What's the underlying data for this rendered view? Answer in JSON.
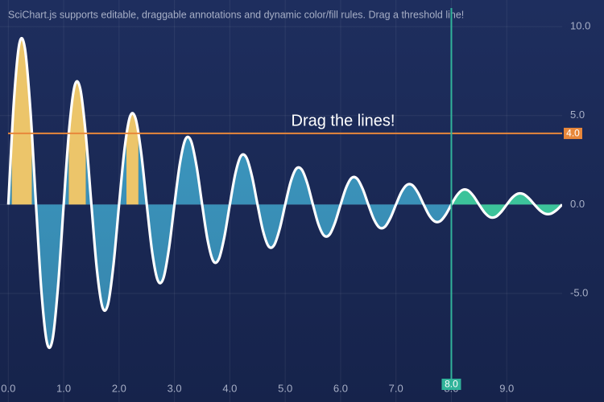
{
  "chart_data": {
    "type": "line",
    "title": "SciChart.js supports editable, draggable annotations and dynamic color/fill rules. Drag a threshold line!",
    "x": [
      0,
      0.1,
      0.2,
      0.3,
      0.4,
      0.5,
      0.6,
      0.7,
      0.8,
      0.9,
      1,
      1.1,
      1.2,
      1.3,
      1.4,
      1.5,
      1.6,
      1.7,
      1.8,
      1.9,
      2,
      2.1,
      2.2,
      2.3,
      2.4,
      2.5,
      2.6,
      2.7,
      2.8,
      2.9,
      3,
      3.1,
      3.2,
      3.3,
      3.4,
      3.5,
      3.6,
      3.7,
      3.8,
      3.9,
      4,
      4.1,
      4.2,
      4.3,
      4.4,
      4.5,
      4.6,
      4.7,
      4.8,
      4.9,
      5,
      5.1,
      5.2,
      5.3,
      5.4,
      5.5,
      5.6,
      5.7,
      5.8,
      5.9,
      6,
      6.1,
      6.2,
      6.3,
      6.4,
      6.5,
      6.6,
      6.7,
      6.8,
      6.9,
      7,
      7.1,
      7.2,
      7.3,
      7.4,
      7.5,
      7.6,
      7.7,
      7.8,
      7.9,
      8,
      8.1,
      8.2,
      8.3,
      8.4,
      8.5,
      8.6,
      8.7,
      8.8,
      8.9,
      9,
      9.1,
      9.2,
      9.3,
      9.4,
      9.5,
      9.6,
      9.7,
      9.8,
      9.9,
      10
    ],
    "values": [
      0,
      5.76,
      9.05,
      8.78,
      5.27,
      0,
      -4.96,
      -7.79,
      -7.56,
      -4.53,
      0,
      4.27,
      6.7,
      6.5,
      3.9,
      0,
      -3.67,
      -5.77,
      -5.6,
      -3.36,
      0,
      3.16,
      4.97,
      4.82,
      2.89,
      0,
      -2.72,
      -4.27,
      -4.15,
      -2.49,
      0,
      2.34,
      3.68,
      3.57,
      2.14,
      0,
      -2.02,
      -3.17,
      -3.07,
      -1.84,
      0,
      1.74,
      2.73,
      2.64,
      1.59,
      0,
      -1.49,
      -2.35,
      -2.28,
      -1.37,
      0,
      1.29,
      2.02,
      1.96,
      1.18,
      0,
      -1.11,
      -1.74,
      -1.69,
      -1.01,
      0,
      0.95,
      1.5,
      1.45,
      0.87,
      0,
      -0.82,
      -1.29,
      -1.25,
      -0.75,
      0,
      0.71,
      1.11,
      1.08,
      0.65,
      0,
      -0.61,
      -0.95,
      -0.93,
      -0.56,
      0,
      0.52,
      0.82,
      0.8,
      0.48,
      0,
      -0.45,
      -0.71,
      -0.69,
      -0.41,
      0,
      0.39,
      0.61,
      0.59,
      0.35,
      0,
      -0.33,
      -0.52,
      -0.51,
      -0.31,
      0
    ],
    "color": "#ffffff",
    "fill_colors": {
      "default": "#3e9fc6",
      "above_threshold": "#ecc56a",
      "right_of_threshold": "#3cc39a"
    },
    "xlim": [
      -0.15,
      10
    ],
    "ylim": [
      -11.1,
      11.5
    ],
    "xticks": [
      {
        "value": 0,
        "label": "0.0"
      },
      {
        "value": 1,
        "label": "1.0"
      },
      {
        "value": 2,
        "label": "2.0"
      },
      {
        "value": 3,
        "label": "3.0"
      },
      {
        "value": 4,
        "label": "4.0"
      },
      {
        "value": 5,
        "label": "5.0"
      },
      {
        "value": 6,
        "label": "6.0"
      },
      {
        "value": 7,
        "label": "7.0"
      },
      {
        "value": 8,
        "label": "8.0"
      },
      {
        "value": 9,
        "label": "9.0"
      }
    ],
    "yticks": [
      {
        "value": -5,
        "label": "-5.0"
      },
      {
        "value": 0,
        "label": "0.0"
      },
      {
        "value": 5,
        "label": "5.0"
      },
      {
        "value": 10,
        "label": "10.0"
      }
    ],
    "grid": true,
    "threshold_y": {
      "value": 4,
      "label": "4.0",
      "color": "#e8873a"
    },
    "threshold_x": {
      "value": 8,
      "label": "8.0",
      "color": "#31b39a"
    },
    "annotation_text": "Drag the lines!"
  }
}
